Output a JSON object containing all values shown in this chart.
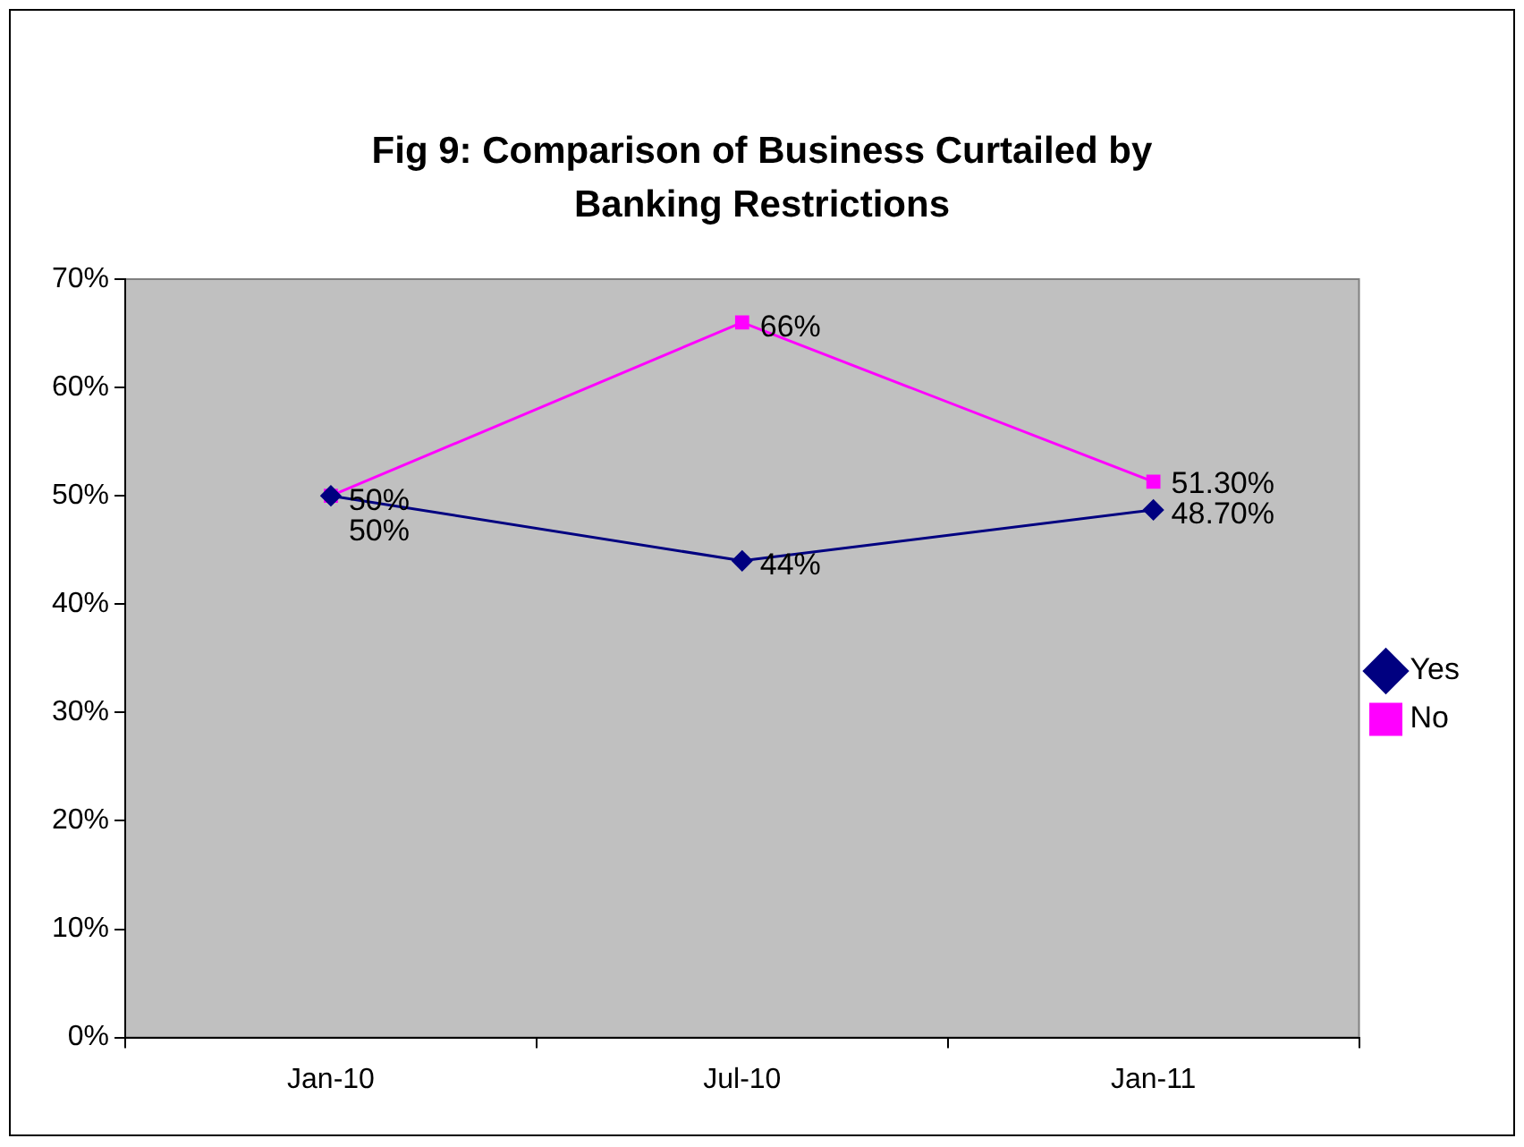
{
  "chart_data": {
    "type": "line",
    "title": "Fig 9: Comparison of Business Curtailed by Banking Restrictions",
    "categories": [
      "Jan-10",
      "Jul-10",
      "Jan-11"
    ],
    "series": [
      {
        "name": "Yes",
        "color": "#000080",
        "values": [
          50,
          44,
          48.7
        ],
        "marker": "diamond",
        "value_labels": [
          "50%",
          "44%",
          "48.70%"
        ]
      },
      {
        "name": "No",
        "color": "#ff00ff",
        "values": [
          50,
          66,
          51.3
        ],
        "marker": "square",
        "value_labels": [
          "50%",
          "66%",
          "51.30%"
        ]
      }
    ],
    "ylim": [
      0,
      70
    ],
    "yticks": [
      {
        "value": 0,
        "label": "0%"
      },
      {
        "value": 10,
        "label": "10%"
      },
      {
        "value": 20,
        "label": "20%"
      },
      {
        "value": 30,
        "label": "30%"
      },
      {
        "value": 40,
        "label": "40%"
      },
      {
        "value": 50,
        "label": "50%"
      },
      {
        "value": 60,
        "label": "60%"
      },
      {
        "value": 70,
        "label": "70%"
      }
    ],
    "legend": "right"
  }
}
